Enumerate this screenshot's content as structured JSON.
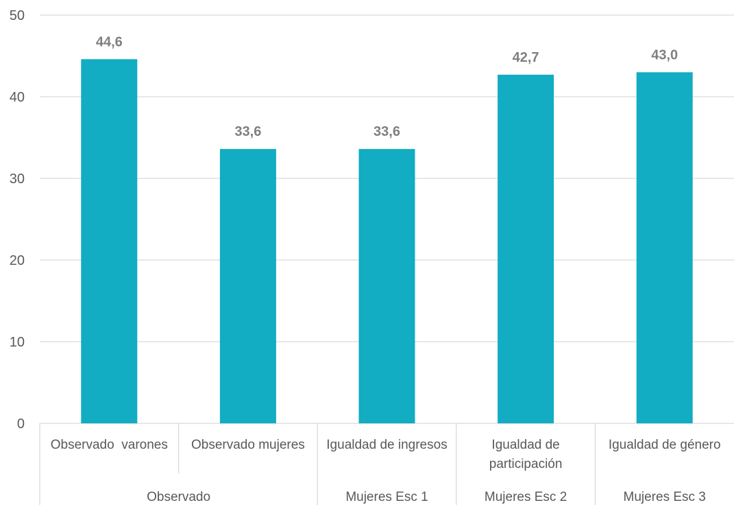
{
  "chart_data": {
    "type": "bar",
    "categories": [
      [
        "Observado  varones"
      ],
      [
        "Observado mujeres"
      ],
      [
        "Igualdad de ingresos"
      ],
      [
        "Igualdad de",
        "participación"
      ],
      [
        "Igualdad de género"
      ]
    ],
    "groups": [
      {
        "label": "Observado",
        "span": 2
      },
      {
        "label": "Mujeres Esc 1",
        "span": 1
      },
      {
        "label": "Mujeres Esc 2",
        "span": 1
      },
      {
        "label": "Mujeres Esc 3",
        "span": 1
      }
    ],
    "values": [
      44.6,
      33.6,
      33.6,
      42.7,
      43.0
    ],
    "data_labels": [
      "44,6",
      "33,6",
      "33,6",
      "42,7",
      "43,0"
    ],
    "ylim": [
      0,
      50
    ],
    "yticks": [
      0,
      10,
      20,
      30,
      40,
      50
    ],
    "grid": true,
    "bar_color": "#12acc3",
    "title": "",
    "xlabel": "",
    "ylabel": ""
  }
}
